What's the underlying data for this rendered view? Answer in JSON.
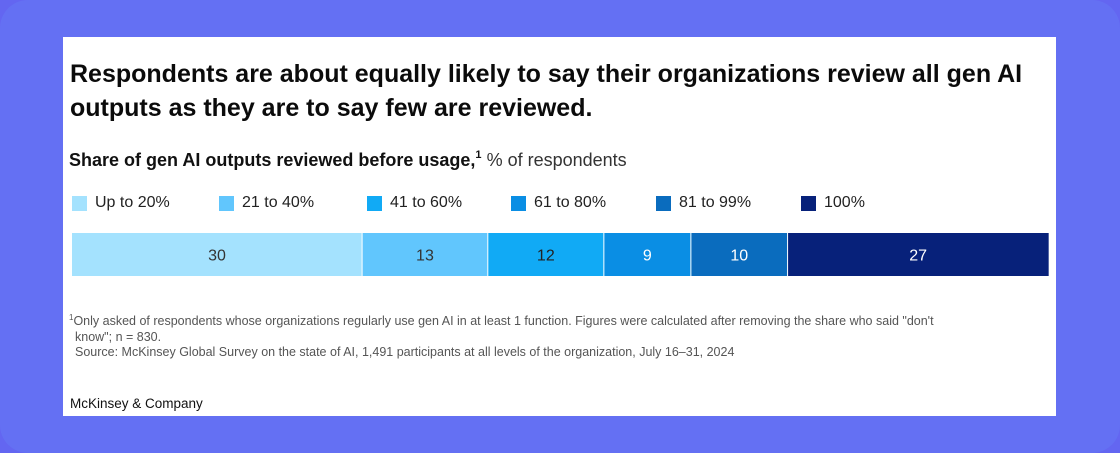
{
  "headline": "Respondents are about equally likely to say their organizations review all gen AI outputs as they are to say few are reviewed.",
  "subtitle": {
    "title": "Share of gen AI outputs reviewed before usage,",
    "footnote_marker": "1",
    "unit": "% of respondents"
  },
  "chart_data": {
    "type": "bar",
    "orientation": "horizontal-stacked",
    "total": 100,
    "series": [
      {
        "name": "Up to 20%",
        "value": 30,
        "color": "#a4e2fe"
      },
      {
        "name": "21 to 40%",
        "value": 13,
        "color": "#61c6fd"
      },
      {
        "name": "41 to 60%",
        "value": 12,
        "color": "#11aaf5"
      },
      {
        "name": "61 to 80%",
        "value": 9,
        "color": "#0a8ee4"
      },
      {
        "name": "81 to 99%",
        "value": 10,
        "color": "#0a6cbe"
      },
      {
        "name": "100%",
        "value": 27,
        "color": "#07217a"
      }
    ],
    "label_colors": [
      "#333333",
      "#333333",
      "#222222",
      "#ffffff",
      "#ffffff",
      "#ffffff"
    ],
    "legend_position": "top-left"
  },
  "footnote": {
    "marker": "1",
    "line1": "Only asked of respondents whose organizations regularly use gen AI in at least 1 function. Figures were calculated after removing the share who said \"don't",
    "line2": "know\"; n = 830.",
    "source": "Source: McKinsey Global Survey on the state of AI, 1,491 participants at all levels of the organization, July 16–31, 2024"
  },
  "brand": "McKinsey & Company"
}
